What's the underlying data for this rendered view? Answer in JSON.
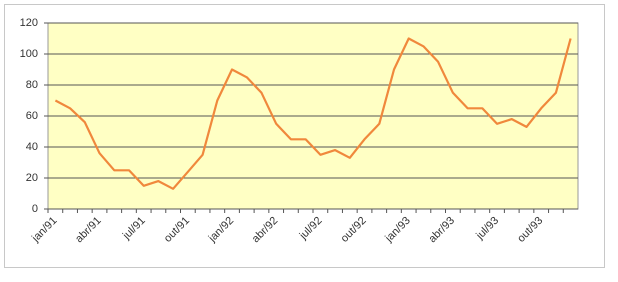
{
  "chart_data": {
    "type": "line",
    "categories": [
      "jan/91",
      null,
      null,
      "abr/91",
      null,
      null,
      "jul/91",
      null,
      null,
      "out/91",
      null,
      null,
      "jan/92",
      null,
      null,
      "abr/92",
      null,
      null,
      "jul/92",
      null,
      null,
      "out/92",
      null,
      null,
      "jan/93",
      null,
      null,
      "abr/93",
      null,
      null,
      "jul/93",
      null,
      null,
      "out/93",
      null,
      null
    ],
    "values": [
      70,
      65,
      56,
      36,
      25,
      25,
      15,
      18,
      13,
      24,
      35,
      70,
      90,
      85,
      75,
      55,
      45,
      45,
      35,
      38,
      33,
      45,
      55,
      90,
      110,
      105,
      95,
      75,
      65,
      65,
      55,
      58,
      53,
      65,
      75,
      110
    ],
    "color": "#f0883c",
    "ylim": [
      0,
      120
    ],
    "yticks": [
      0,
      20,
      40,
      60,
      80,
      100,
      120
    ],
    "grid": true
  }
}
